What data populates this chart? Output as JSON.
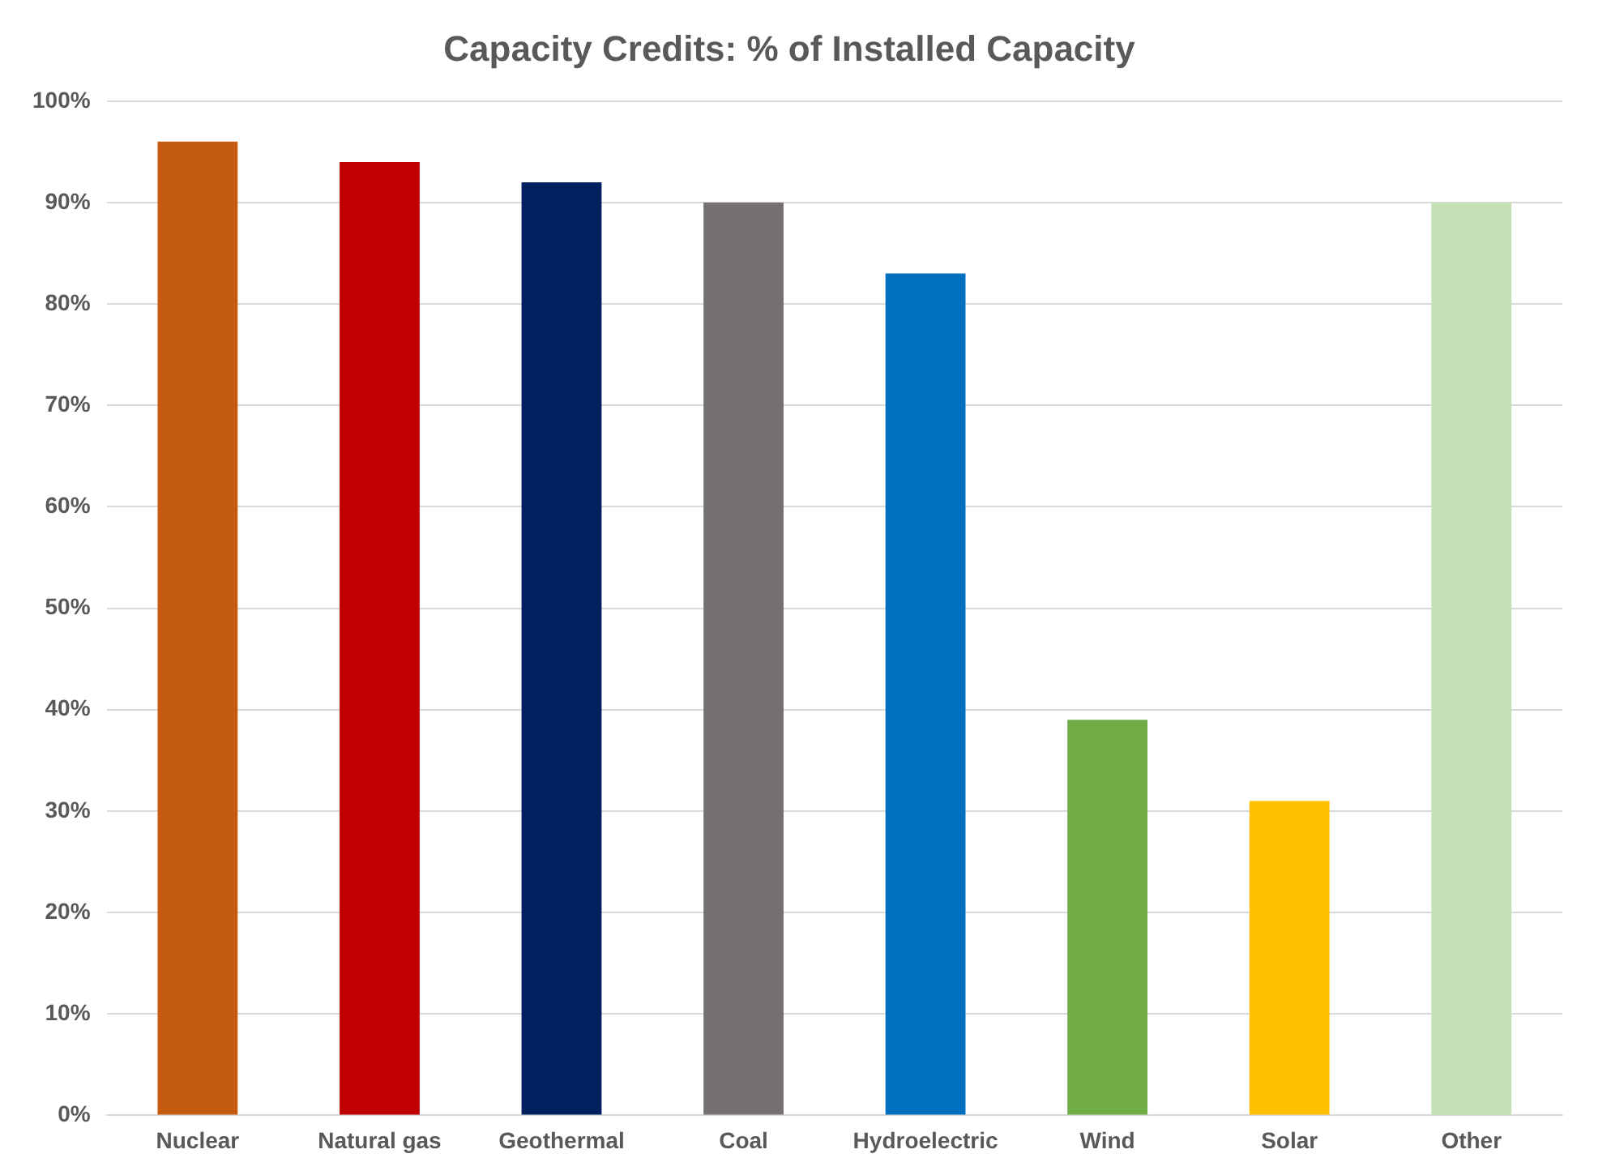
{
  "chart_data": {
    "type": "bar",
    "title": "Capacity Credits: % of Installed Capacity",
    "categories": [
      "Nuclear",
      "Natural gas",
      "Geothermal",
      "Coal",
      "Hydroelectric",
      "Wind",
      "Solar",
      "Other"
    ],
    "values": [
      96,
      94,
      92,
      90,
      83,
      39,
      31,
      90
    ],
    "colors": [
      "#c55a11",
      "#c00000",
      "#002060",
      "#767171",
      "#0070c0",
      "#70ad47",
      "#ffc000",
      "#c5e0b4"
    ],
    "ylim": [
      0,
      100
    ],
    "yticks": [
      {
        "value": 0,
        "label": "0%"
      },
      {
        "value": 10,
        "label": "10%"
      },
      {
        "value": 20,
        "label": "20%"
      },
      {
        "value": 30,
        "label": "30%"
      },
      {
        "value": 40,
        "label": "40%"
      },
      {
        "value": 50,
        "label": "50%"
      },
      {
        "value": 60,
        "label": "60%"
      },
      {
        "value": 70,
        "label": "70%"
      },
      {
        "value": 80,
        "label": "80%"
      },
      {
        "value": 90,
        "label": "90%"
      },
      {
        "value": 100,
        "label": "100%"
      }
    ],
    "grid": "y"
  }
}
